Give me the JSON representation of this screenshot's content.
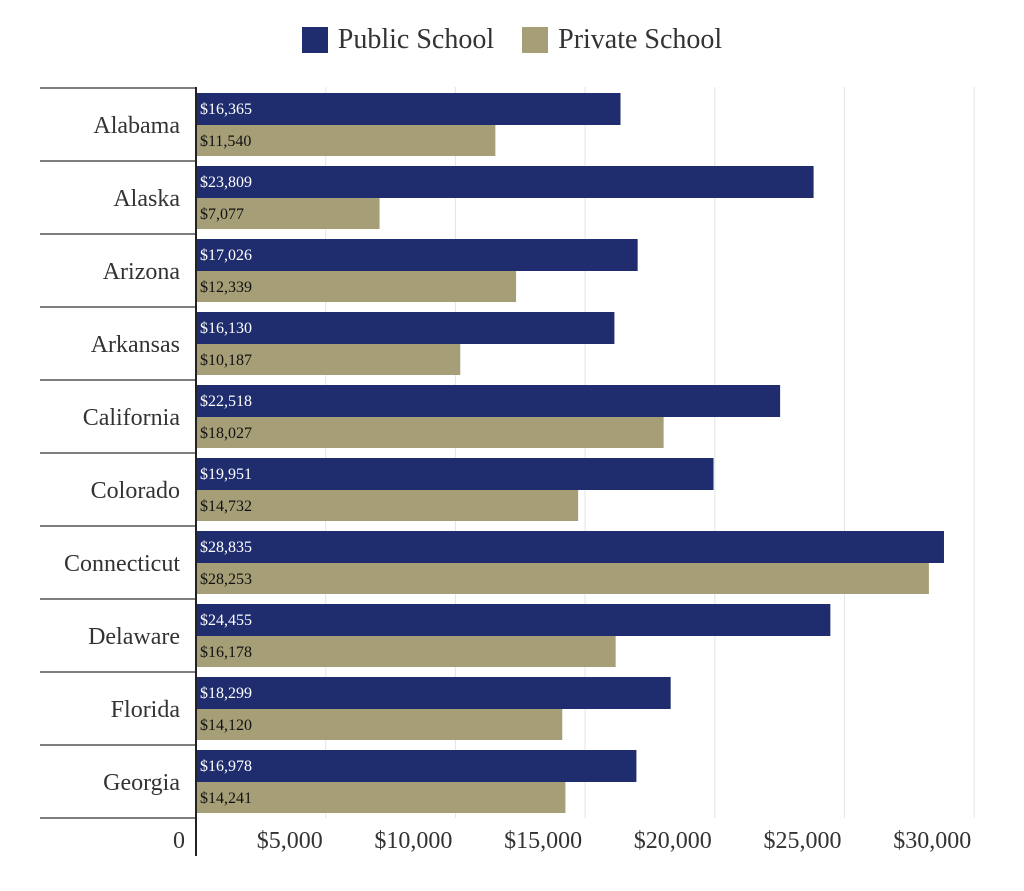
{
  "chart_data": {
    "type": "bar",
    "orientation": "horizontal",
    "categories": [
      "Alabama",
      "Alaska",
      "Arizona",
      "Arkansas",
      "California",
      "Colorado",
      "Connecticut",
      "Delaware",
      "Florida",
      "Georgia"
    ],
    "series": [
      {
        "name": "Public School",
        "color": "#1f2d6e",
        "values": [
          16365,
          23809,
          17026,
          16130,
          22518,
          19951,
          28835,
          24455,
          18299,
          16978
        ],
        "labels": [
          "$16,365",
          "$23,809",
          "$17,026",
          "$16,130",
          "$22,518",
          "$19,951",
          "$28,835",
          "$24,455",
          "$18,299",
          "$16,978"
        ]
      },
      {
        "name": "Private School",
        "color": "#a59e77",
        "values": [
          11540,
          7077,
          12339,
          10187,
          18027,
          14732,
          28253,
          16178,
          14120,
          14241
        ],
        "labels": [
          "$11,540",
          "$7,077",
          "$12,339",
          "$10,187",
          "$18,027",
          "$14,732",
          "$28,253",
          "$16,178",
          "$14,120",
          "$14,241"
        ]
      }
    ],
    "x_ticks": [
      0,
      5000,
      10000,
      15000,
      20000,
      25000,
      30000
    ],
    "x_tick_labels": [
      "0",
      "$5,000",
      "$10,000",
      "$15,000",
      "$20,000",
      "$25,000",
      "$30,000"
    ],
    "xlim": [
      0,
      30000
    ],
    "title": "",
    "xlabel": "",
    "ylabel": "",
    "grid": true,
    "legend_position": "top-center"
  }
}
